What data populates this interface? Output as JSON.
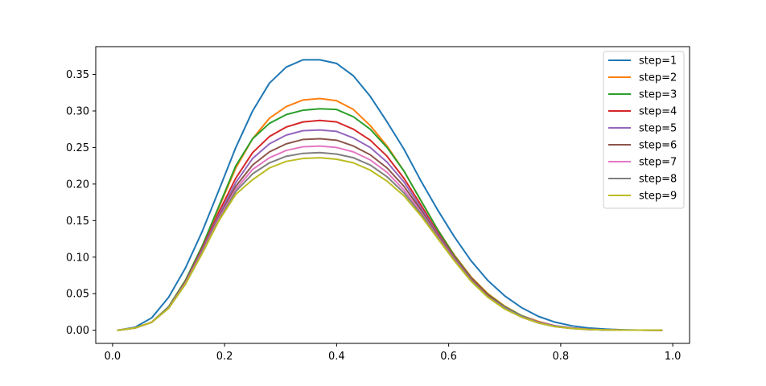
{
  "chart_data": {
    "type": "line",
    "title": "",
    "xlabel": "",
    "ylabel": "",
    "xlim": [
      -0.03,
      1.03
    ],
    "ylim": [
      -0.018,
      0.388
    ],
    "xticks": [
      0.0,
      0.2,
      0.4,
      0.6,
      0.8,
      1.0
    ],
    "xtick_labels": [
      "0.0",
      "0.2",
      "0.4",
      "0.6",
      "0.8",
      "1.0"
    ],
    "yticks": [
      0.0,
      0.05,
      0.1,
      0.15,
      0.2,
      0.25,
      0.3,
      0.35
    ],
    "ytick_labels": [
      "0.00",
      "0.05",
      "0.10",
      "0.15",
      "0.20",
      "0.25",
      "0.30",
      "0.35"
    ],
    "grid": false,
    "legend_position": "top-right",
    "x": [
      0.01,
      0.04,
      0.07,
      0.1,
      0.13,
      0.16,
      0.19,
      0.22,
      0.25,
      0.28,
      0.31,
      0.34,
      0.37,
      0.4,
      0.43,
      0.46,
      0.49,
      0.52,
      0.55,
      0.58,
      0.61,
      0.64,
      0.67,
      0.7,
      0.73,
      0.76,
      0.79,
      0.82,
      0.85,
      0.88,
      0.91,
      0.94,
      0.98
    ],
    "series": [
      {
        "name": "step=1",
        "color": "#1f77b4",
        "values": [
          0.0,
          0.004,
          0.017,
          0.045,
          0.085,
          0.135,
          0.192,
          0.25,
          0.3,
          0.338,
          0.36,
          0.37,
          0.37,
          0.365,
          0.348,
          0.32,
          0.285,
          0.248,
          0.205,
          0.165,
          0.128,
          0.095,
          0.068,
          0.047,
          0.031,
          0.019,
          0.011,
          0.006,
          0.003,
          0.0015,
          0.0006,
          0.0002,
          0.0
        ]
      },
      {
        "name": "step=2",
        "color": "#ff7f0e",
        "values": [
          0.0,
          0.003,
          0.011,
          0.032,
          0.068,
          0.115,
          0.168,
          0.222,
          0.262,
          0.29,
          0.306,
          0.315,
          0.317,
          0.314,
          0.302,
          0.28,
          0.252,
          0.218,
          0.178,
          0.138,
          0.103,
          0.073,
          0.05,
          0.033,
          0.02,
          0.012,
          0.006,
          0.003,
          0.0012,
          0.0005,
          0.0002,
          0.0001,
          0.0
        ]
      },
      {
        "name": "step=3",
        "color": "#2ca02c",
        "values": [
          0.0,
          0.003,
          0.011,
          0.032,
          0.068,
          0.115,
          0.17,
          0.225,
          0.262,
          0.283,
          0.295,
          0.301,
          0.303,
          0.302,
          0.292,
          0.275,
          0.25,
          0.218,
          0.178,
          0.138,
          0.102,
          0.072,
          0.049,
          0.032,
          0.02,
          0.011,
          0.006,
          0.003,
          0.0012,
          0.0005,
          0.0002,
          0.0001,
          0.0
        ]
      },
      {
        "name": "step=4",
        "color": "#d62728",
        "values": [
          0.0,
          0.003,
          0.011,
          0.031,
          0.066,
          0.112,
          0.162,
          0.208,
          0.243,
          0.265,
          0.278,
          0.285,
          0.287,
          0.285,
          0.275,
          0.26,
          0.238,
          0.208,
          0.172,
          0.134,
          0.1,
          0.071,
          0.048,
          0.031,
          0.019,
          0.011,
          0.006,
          0.003,
          0.0012,
          0.0005,
          0.0002,
          0.0001,
          0.0
        ]
      },
      {
        "name": "step=5",
        "color": "#9467bd",
        "values": [
          0.0,
          0.003,
          0.011,
          0.031,
          0.065,
          0.11,
          0.158,
          0.202,
          0.235,
          0.255,
          0.267,
          0.273,
          0.274,
          0.272,
          0.263,
          0.25,
          0.23,
          0.203,
          0.168,
          0.132,
          0.099,
          0.07,
          0.047,
          0.031,
          0.019,
          0.011,
          0.006,
          0.003,
          0.0012,
          0.0005,
          0.0002,
          0.0001,
          0.0
        ]
      },
      {
        "name": "step=6",
        "color": "#8c564b",
        "values": [
          0.0,
          0.003,
          0.011,
          0.03,
          0.064,
          0.108,
          0.155,
          0.197,
          0.226,
          0.244,
          0.255,
          0.261,
          0.262,
          0.26,
          0.252,
          0.24,
          0.222,
          0.197,
          0.165,
          0.13,
          0.098,
          0.069,
          0.047,
          0.03,
          0.018,
          0.01,
          0.005,
          0.0025,
          0.001,
          0.0004,
          0.0002,
          0.0001,
          0.0
        ]
      },
      {
        "name": "step=7",
        "color": "#e377c2",
        "values": [
          0.0,
          0.003,
          0.011,
          0.03,
          0.064,
          0.107,
          0.153,
          0.193,
          0.22,
          0.236,
          0.246,
          0.251,
          0.252,
          0.25,
          0.244,
          0.233,
          0.216,
          0.192,
          0.162,
          0.128,
          0.097,
          0.068,
          0.046,
          0.03,
          0.018,
          0.01,
          0.005,
          0.0025,
          0.001,
          0.0004,
          0.0002,
          0.0001,
          0.0
        ]
      },
      {
        "name": "step=8",
        "color": "#7f7f7f",
        "values": [
          0.0,
          0.003,
          0.011,
          0.03,
          0.063,
          0.106,
          0.151,
          0.19,
          0.214,
          0.229,
          0.238,
          0.242,
          0.243,
          0.241,
          0.236,
          0.226,
          0.21,
          0.188,
          0.16,
          0.127,
          0.096,
          0.068,
          0.046,
          0.03,
          0.018,
          0.01,
          0.005,
          0.0025,
          0.001,
          0.0004,
          0.0002,
          0.0001,
          0.0
        ]
      },
      {
        "name": "step=9",
        "color": "#bcbd22",
        "values": [
          0.0,
          0.003,
          0.011,
          0.03,
          0.063,
          0.105,
          0.15,
          0.186,
          0.206,
          0.222,
          0.231,
          0.235,
          0.236,
          0.234,
          0.229,
          0.219,
          0.204,
          0.184,
          0.157,
          0.126,
          0.095,
          0.067,
          0.045,
          0.029,
          0.018,
          0.01,
          0.005,
          0.0025,
          0.001,
          0.0004,
          0.0002,
          0.0001,
          0.0
        ]
      }
    ]
  }
}
